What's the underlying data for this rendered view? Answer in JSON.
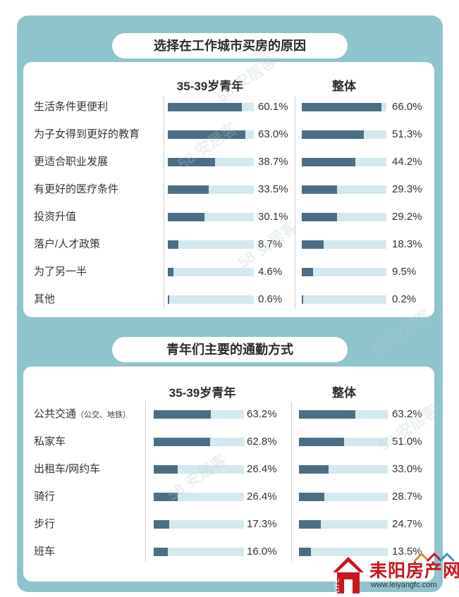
{
  "chart_data": [
    {
      "type": "bar",
      "title": "选择在工作城市买房的原因",
      "series": [
        {
          "name": "35-39岁青年",
          "values": [
            60.1,
            63.0,
            38.7,
            33.5,
            30.1,
            8.7,
            4.6,
            0.6
          ],
          "labels": [
            "60.1%",
            "63.0%",
            "38.7%",
            "33.5%",
            "30.1%",
            "8.7%",
            "4.6%",
            "0.6%"
          ]
        },
        {
          "name": "整体",
          "values": [
            66.0,
            51.3,
            44.2,
            29.3,
            29.2,
            18.3,
            9.5,
            0.2
          ],
          "labels": [
            "66.0%",
            "51.3%",
            "44.2%",
            "29.3%",
            "29.2%",
            "18.3%",
            "9.5%",
            "0.2%"
          ]
        }
      ],
      "categories": [
        "生活条件更便利",
        "为子女得到更好的教育",
        "更适合职业发展",
        "有更好的医疗条件",
        "投资升值",
        "落户/人才政策",
        "为了另一半",
        "其他"
      ],
      "categories_note": [
        "",
        "",
        "",
        "",
        "",
        "",
        "",
        ""
      ],
      "xlim": [
        0,
        100
      ],
      "colors": {
        "fill": "#4b6e84",
        "track": "#d4e9ee"
      }
    },
    {
      "type": "bar",
      "title": "青年们主要的通勤方式",
      "series": [
        {
          "name": "35-39岁青年",
          "values": [
            63.2,
            62.8,
            26.4,
            26.4,
            17.3,
            16.0
          ],
          "labels": [
            "63.2%",
            "62.8%",
            "26.4%",
            "26.4%",
            "17.3%",
            "16.0%"
          ]
        },
        {
          "name": "整体",
          "values": [
            63.2,
            51.0,
            33.0,
            28.7,
            24.7,
            13.5
          ],
          "labels": [
            "63.2%",
            "51.0%",
            "33.0%",
            "28.7%",
            "24.7%",
            "13.5%"
          ]
        }
      ],
      "categories": [
        "公共交通",
        "私家车",
        "出租车/网约车",
        "骑行",
        "步行",
        "班车"
      ],
      "categories_note": [
        "（公交、地铁）",
        "",
        "",
        "",
        "",
        ""
      ],
      "xlim": [
        0,
        100
      ],
      "colors": {
        "fill": "#4b6e84",
        "track": "#d4e9ee"
      }
    }
  ],
  "watermark": {
    "text": "58 安居客"
  },
  "logo": {
    "brand": "耒阳房产网",
    "url": "www.leiyangfc.com",
    "mark": "LYFC"
  },
  "colors": {
    "frame": "#8fc4cc",
    "accent": "#c8161d"
  }
}
